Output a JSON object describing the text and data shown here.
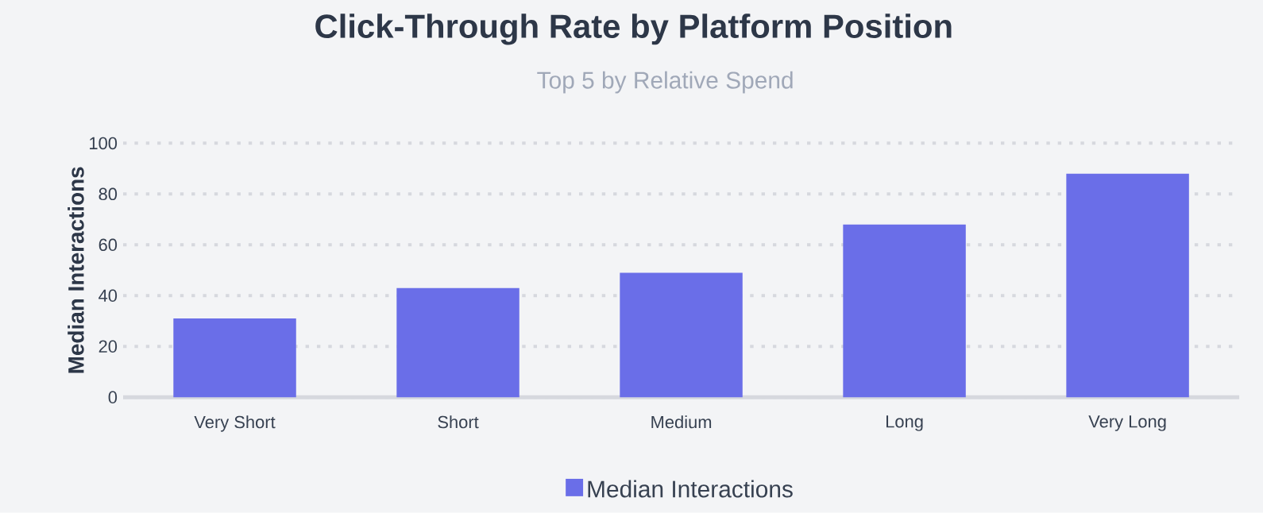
{
  "chart_data": {
    "type": "bar",
    "title": "Click-Through Rate by Platform Position",
    "subtitle": "Top 5 by Relative Spend",
    "ylabel": "Median Interactions",
    "categories": [
      "Very Short",
      "Short",
      "Medium",
      "Long",
      "Very Long"
    ],
    "series": [
      {
        "name": "Median Interactions",
        "color": "#6a6ee8",
        "values": [
          31,
          43,
          49,
          68,
          88
        ]
      }
    ],
    "ylim": [
      0,
      100
    ],
    "yticks": [
      0,
      20,
      40,
      60,
      80,
      100
    ],
    "grid": "y",
    "legend": "bottom"
  }
}
